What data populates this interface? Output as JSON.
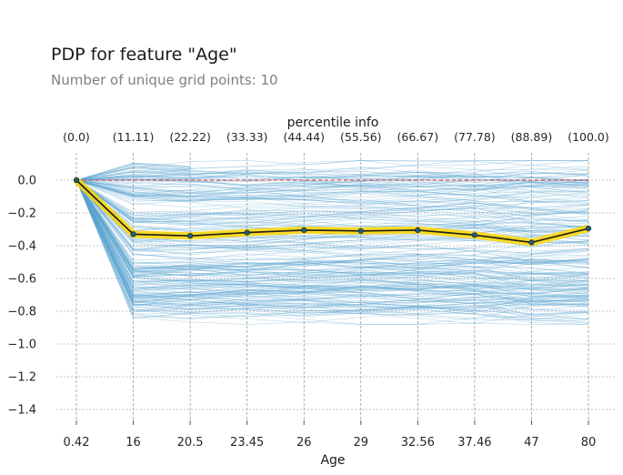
{
  "chart_data": {
    "type": "line",
    "title": "PDP for feature \"Age\"",
    "subtitle": "Number of unique grid points: 10",
    "xlabel": "Age",
    "top_axis_label": "percentile info",
    "categories": [
      "0.42",
      "16",
      "20.5",
      "23.45",
      "26",
      "29",
      "32.56",
      "37.46",
      "47",
      "80"
    ],
    "percentiles": [
      "(0.0)",
      "(11.11)",
      "(22.22)",
      "(33.33)",
      "(44.44)",
      "(55.56)",
      "(66.67)",
      "(77.78)",
      "(88.89)",
      "(100.0)"
    ],
    "yticks": [
      "0.0",
      "−0.2",
      "−0.4",
      "−0.6",
      "−0.8",
      "−1.0",
      "−1.2",
      "−1.4"
    ],
    "ylim": [
      -1.5,
      0.15
    ],
    "reference_line": 0.0,
    "series": [
      {
        "values": [
          0.0,
          -0.33,
          -0.34,
          -0.32,
          -0.305,
          -0.31,
          -0.305,
          -0.335,
          -0.38,
          -0.295
        ]
      }
    ],
    "ice_lines": "several hundred individual conditional expectation lines, ranging from about 0.12 to -0.85",
    "grid": true,
    "colors": {
      "ice": "#5ba3d0",
      "pdp_fill": "#ffd700",
      "pdp_line": "#1a1a1a",
      "pdp_marker": "#1f5f7a",
      "reference": "#e05050",
      "grid": "#8c8c8c"
    }
  }
}
